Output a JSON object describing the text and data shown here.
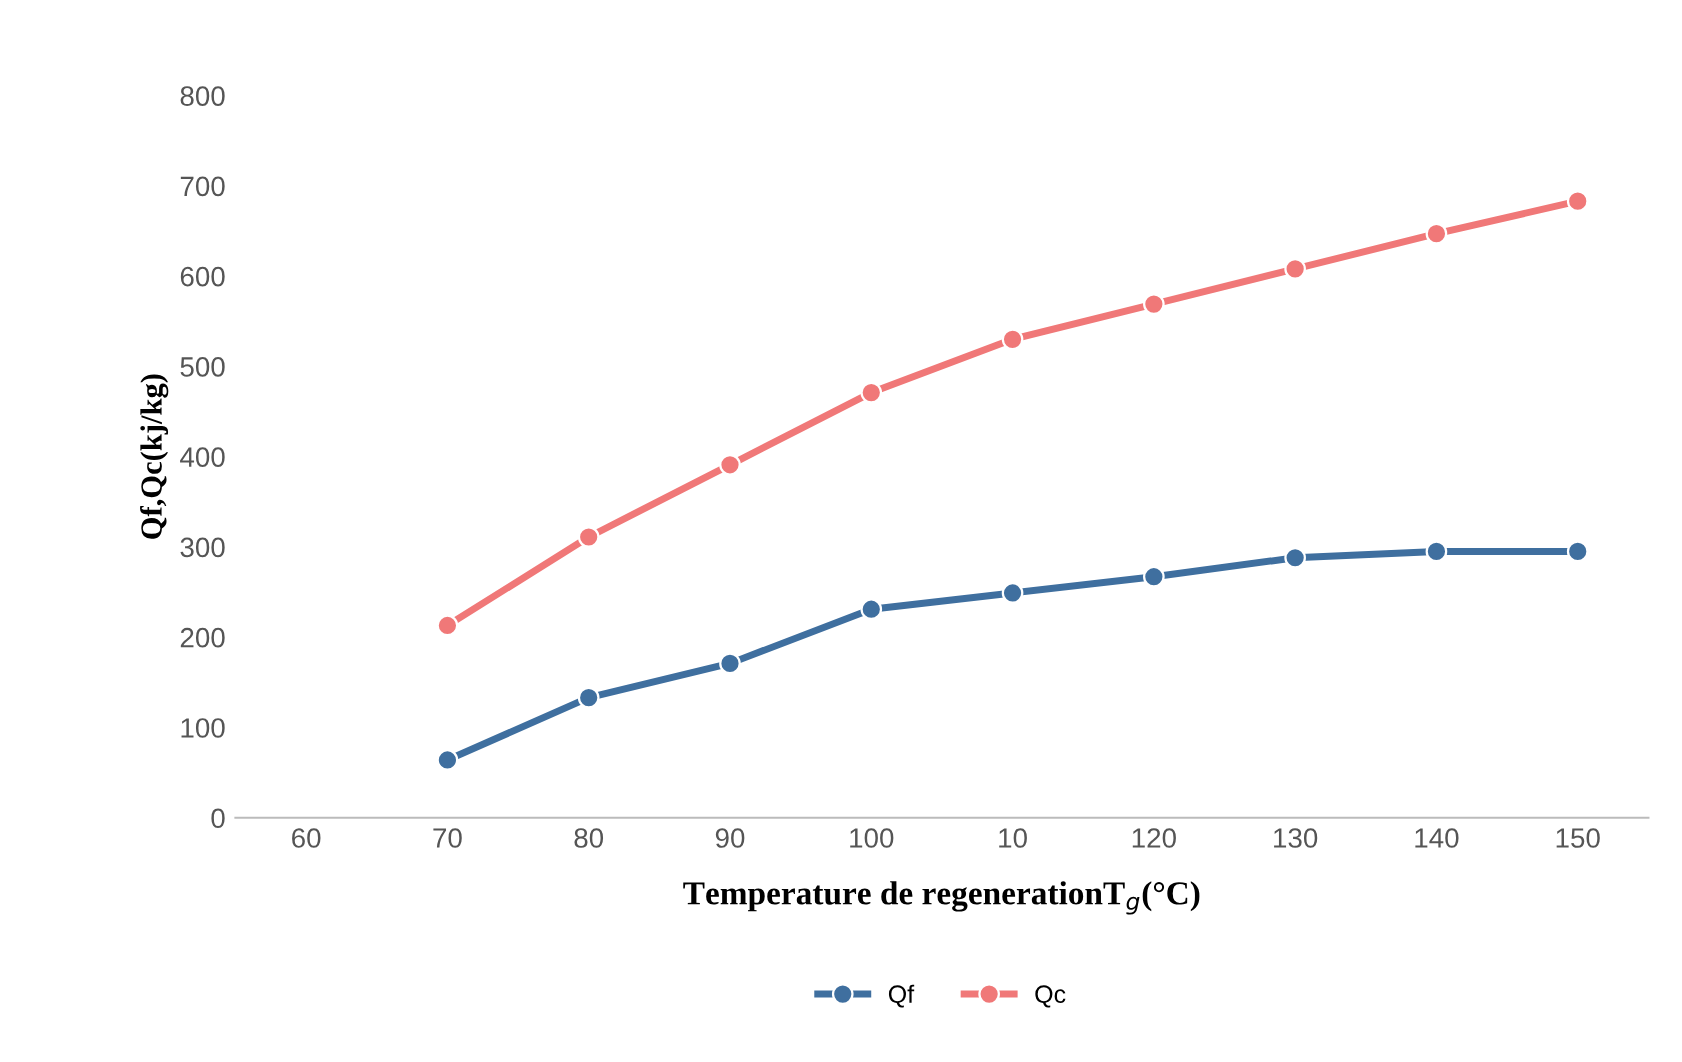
{
  "chart_data": {
    "type": "line",
    "xlabel": "Temperature de regenerationT$_{g}$(°C)",
    "ylabel": "Qf,Qc(kj/kg)",
    "categories": [
      "60",
      "70",
      "80",
      "90",
      "100",
      "10",
      "120",
      "130",
      "140",
      "150"
    ],
    "series": [
      {
        "name": "Qf",
        "color": "#3f6f9f",
        "values": [
          null,
          64,
          133,
          171,
          231,
          249,
          267,
          288,
          295,
          295
        ]
      },
      {
        "name": "Qc",
        "color": "#f07878",
        "values": [
          null,
          213,
          311,
          391,
          471,
          530,
          569,
          608,
          647,
          683
        ]
      }
    ],
    "ylim": [
      0,
      800
    ],
    "yticks": [
      0,
      100,
      200,
      300,
      400,
      500,
      600,
      700,
      800
    ],
    "grid": false,
    "legend": "bottom",
    "marker": "circle",
    "line_style": "solid"
  }
}
